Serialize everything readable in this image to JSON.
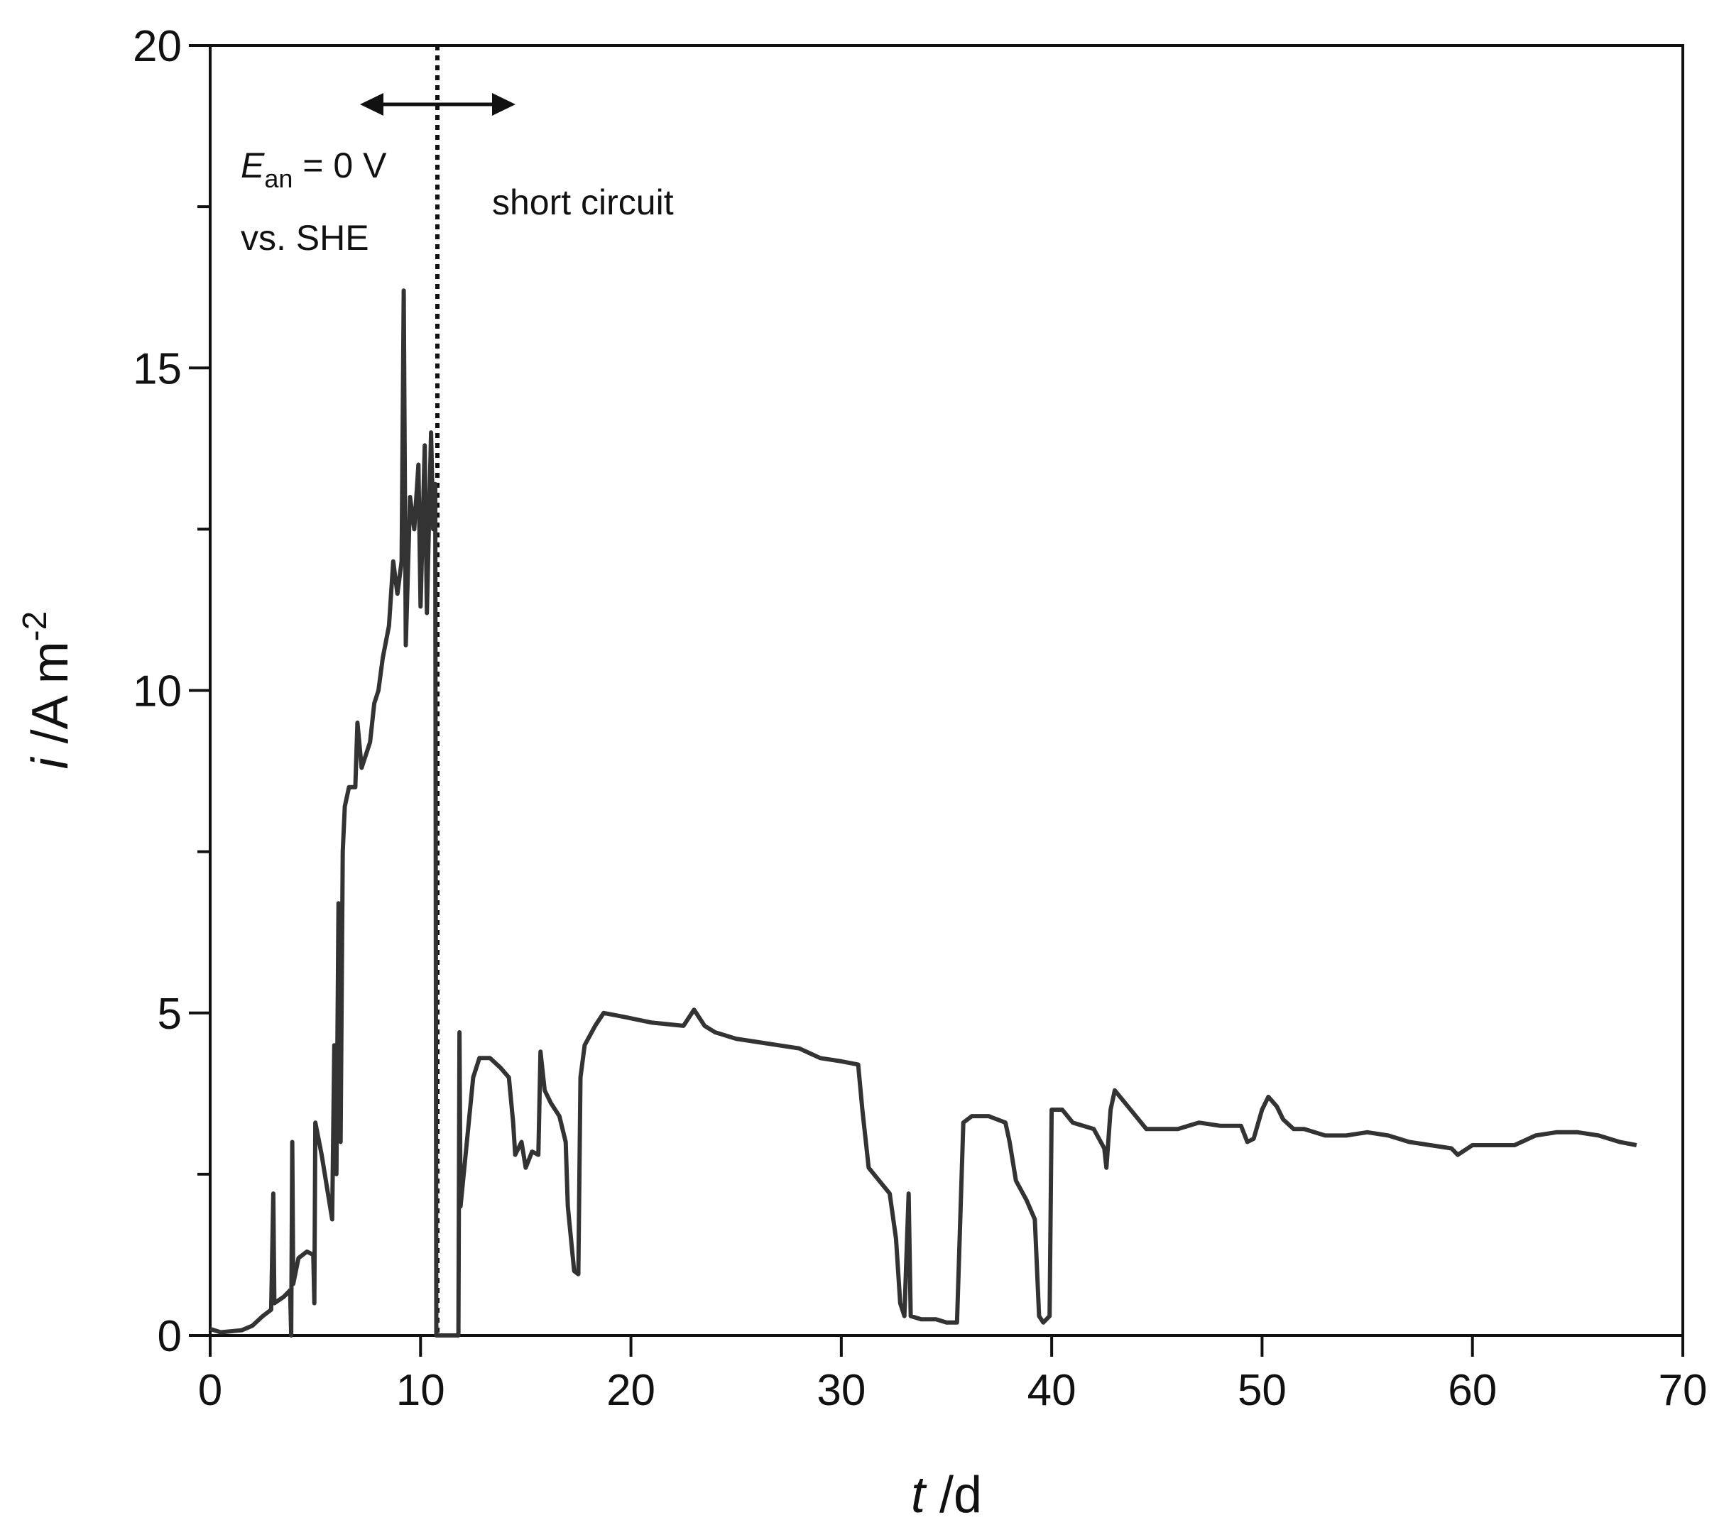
{
  "chart_data": {
    "type": "line",
    "xlabel": {
      "symbol": "t",
      "unit": " /d"
    },
    "ylabel": {
      "symbol": "i",
      "unit": " /A m",
      "exponent": "-2"
    },
    "annotations": [
      {
        "symbol": "E",
        "subscript": "an",
        "text": " = 0 V",
        "line2": "vs. SHE"
      },
      {
        "text": "short circuit"
      }
    ],
    "color": "#333333",
    "xlim": [
      0,
      70
    ],
    "xticks": [
      0,
      10,
      20,
      30,
      40,
      50,
      60,
      70
    ],
    "ylim": [
      0,
      20
    ],
    "yticks": [
      0,
      5,
      10,
      15,
      20
    ],
    "yminor_ticks": [
      2.5,
      7.5,
      12.5,
      17.5
    ],
    "x": [
      0,
      0.5,
      1.5,
      2,
      2.5,
      2.9,
      3.0,
      3.05,
      3.5,
      3.8,
      3.85,
      3.9,
      3.95,
      4.2,
      4.6,
      4.9,
      4.95,
      5.0,
      5.3,
      5.6,
      5.8,
      5.9,
      6.0,
      6.1,
      6.2,
      6.3,
      6.4,
      6.6,
      6.9,
      7.0,
      7.2,
      7.6,
      7.8,
      8.0,
      8.2,
      8.5,
      8.7,
      8.9,
      9.1,
      9.2,
      9.3,
      9.5,
      9.7,
      9.9,
      10.0,
      10.2,
      10.3,
      10.5,
      10.6,
      10.7,
      10.75,
      11.8,
      11.85,
      11.9,
      12.2,
      12.5,
      12.8,
      13.3,
      13.8,
      14.2,
      14.4,
      14.5,
      14.8,
      15.0,
      15.3,
      15.6,
      15.7,
      15.9,
      16.2,
      16.6,
      16.9,
      17.0,
      17.3,
      17.5,
      17.6,
      17.8,
      18.3,
      18.7,
      19.5,
      21,
      22.5,
      23,
      23.5,
      24,
      25,
      26,
      27,
      28,
      29,
      30,
      30.8,
      31.0,
      31.3,
      31.8,
      32.3,
      32.6,
      32.8,
      33.0,
      33.2,
      33.3,
      33.8,
      34.5,
      35.0,
      35.5,
      35.8,
      36.2,
      37.0,
      37.8,
      38.0,
      38.3,
      38.8,
      39.2,
      39.4,
      39.6,
      39.9,
      40.0,
      40.5,
      41.0,
      42.0,
      42.5,
      42.6,
      42.8,
      43.0,
      43.5,
      44.0,
      44.5,
      45,
      46,
      47,
      48,
      49,
      49.3,
      49.6,
      50,
      50.3,
      50.7,
      51,
      51.5,
      52,
      53,
      54,
      55,
      56,
      57,
      58,
      59,
      59.3,
      60,
      61,
      62,
      63,
      64,
      65,
      66,
      67,
      67.8
    ],
    "values": [
      0.1,
      0.05,
      0.08,
      0.15,
      0.3,
      0.4,
      2.2,
      0.5,
      0.6,
      0.7,
      0,
      3.0,
      0.8,
      1.2,
      1.3,
      1.25,
      0.5,
      3.3,
      2.8,
      2.2,
      1.8,
      4.5,
      2.5,
      6.7,
      3.0,
      7.5,
      8.2,
      8.5,
      8.5,
      9.5,
      8.8,
      9.2,
      9.8,
      10.0,
      10.5,
      11.0,
      12.0,
      11.5,
      12.0,
      16.2,
      10.7,
      13.0,
      12.5,
      13.5,
      11.3,
      13.8,
      11.2,
      14.0,
      12.5,
      13.2,
      0,
      0,
      4.7,
      2.0,
      3.0,
      4.0,
      4.3,
      4.3,
      4.15,
      4.0,
      3.3,
      2.8,
      3.0,
      2.6,
      2.85,
      2.8,
      4.4,
      3.8,
      3.6,
      3.4,
      3.0,
      2.0,
      1.0,
      0.95,
      4.0,
      4.5,
      4.8,
      5.0,
      4.95,
      4.85,
      4.8,
      5.05,
      4.8,
      4.7,
      4.6,
      4.55,
      4.5,
      4.45,
      4.3,
      4.25,
      4.2,
      3.5,
      2.6,
      2.4,
      2.2,
      1.5,
      0.5,
      0.3,
      2.2,
      0.3,
      0.25,
      0.25,
      0.2,
      0.2,
      3.3,
      3.4,
      3.4,
      3.3,
      3.0,
      2.4,
      2.1,
      1.8,
      0.3,
      0.2,
      0.3,
      3.5,
      3.5,
      3.3,
      3.2,
      2.9,
      2.6,
      3.5,
      3.8,
      3.6,
      3.4,
      3.2,
      3.2,
      3.2,
      3.3,
      3.25,
      3.25,
      3.0,
      3.05,
      3.5,
      3.7,
      3.55,
      3.35,
      3.2,
      3.2,
      3.1,
      3.1,
      3.15,
      3.1,
      3.0,
      2.95,
      2.9,
      2.8,
      2.95,
      2.95,
      2.95,
      3.1,
      3.15,
      3.15,
      3.1,
      3.0,
      2.95
    ]
  }
}
